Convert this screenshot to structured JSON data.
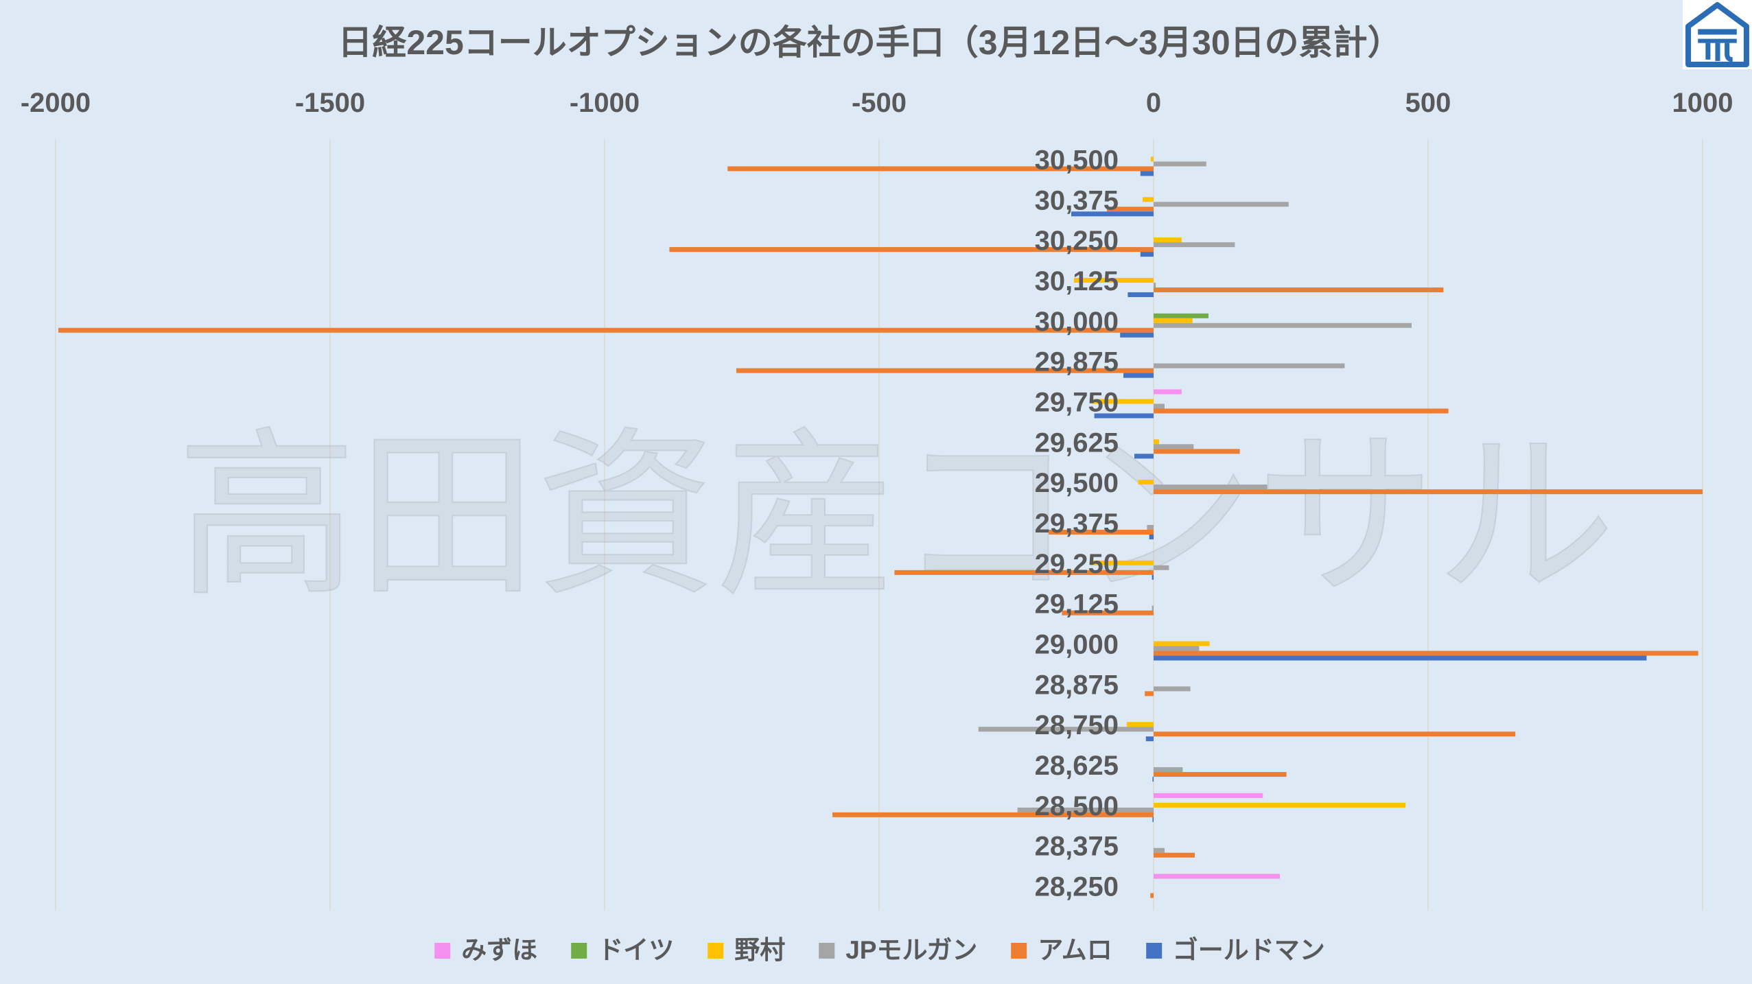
{
  "background_color": "#dde9f5",
  "watermark": {
    "text": "高田資産コンサル"
  },
  "logo": {
    "icon": "company-logo-icon",
    "color": "#2a6db5"
  },
  "chart_data": {
    "type": "bar",
    "orientation": "horizontal",
    "title": "日経225コールオプションの各社の手口（3月12日～3月30日の累計）",
    "xlim": [
      -2000,
      1000
    ],
    "xticks": [
      -2000,
      -1500,
      -1000,
      -500,
      0,
      500,
      1000
    ],
    "xtick_labels": [
      "-2000",
      "-1500",
      "-1000",
      "-500",
      "0",
      "500",
      "1000"
    ],
    "x_axis_position": "top",
    "grid": true,
    "legend_position": "bottom",
    "categories": [
      "30,500",
      "30,375",
      "30,250",
      "30,125",
      "30,000",
      "29,875",
      "29,750",
      "29,625",
      "29,500",
      "29,375",
      "29,250",
      "29,125",
      "29,000",
      "28,875",
      "28,750",
      "28,625",
      "28,500",
      "28,375",
      "28,250"
    ],
    "series": [
      {
        "name": "みずほ",
        "color": "#f58ff0",
        "values": [
          0,
          0,
          0,
          0,
          0,
          0,
          51,
          0,
          0,
          0,
          0,
          0,
          0,
          0,
          0,
          0,
          199,
          0,
          230
        ]
      },
      {
        "name": "ドイツ",
        "color": "#70ad47",
        "values": [
          0,
          0,
          0,
          0,
          100,
          0,
          0,
          0,
          0,
          0,
          0,
          0,
          0,
          0,
          0,
          0,
          0,
          0,
          0
        ]
      },
      {
        "name": "野村",
        "color": "#ffc000",
        "values": [
          -5,
          -20,
          51,
          -145,
          71,
          0,
          -112,
          10,
          -28,
          0,
          -115,
          0,
          102,
          0,
          -49,
          0,
          459,
          0,
          0
        ]
      },
      {
        "name": "JPモルガン",
        "color": "#a5a5a5",
        "values": [
          96,
          246,
          148,
          4,
          470,
          348,
          20,
          73,
          207,
          -12,
          28,
          -3,
          83,
          67,
          -319,
          53,
          -248,
          20,
          0
        ]
      },
      {
        "name": "アムロ",
        "color": "#ed7d31",
        "values": [
          -776,
          -85,
          -882,
          528,
          -1995,
          -760,
          537,
          157,
          1000,
          -191,
          -472,
          -167,
          992,
          -16,
          659,
          242,
          -585,
          75,
          -6
        ]
      },
      {
        "name": "ゴールドマン",
        "color": "#4472c4",
        "values": [
          -24,
          -150,
          -24,
          -47,
          -61,
          -55,
          -108,
          -35,
          0,
          -8,
          -3,
          0,
          898,
          0,
          -14,
          -2,
          -2,
          0,
          0
        ]
      }
    ]
  }
}
